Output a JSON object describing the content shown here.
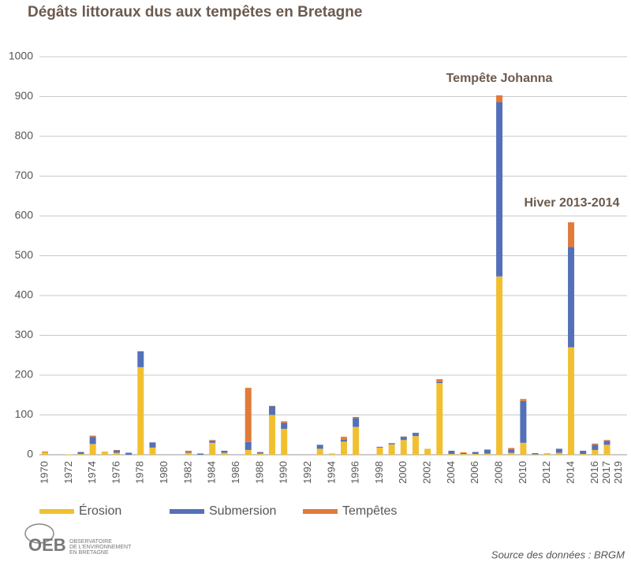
{
  "chart_data": {
    "type": "stacked-bar",
    "title": "Dégâts littoraux dus aux tempêtes en Bretagne",
    "categories": [
      "1970",
      null,
      "1972",
      null,
      "1974",
      null,
      "1976",
      null,
      "1978",
      null,
      "1980",
      null,
      "1982",
      null,
      "1984",
      null,
      "1986",
      null,
      "1988",
      null,
      "1990",
      null,
      "1992",
      null,
      "1994",
      null,
      "1996",
      null,
      "1998",
      null,
      "2000",
      null,
      "2002",
      null,
      "2004",
      null,
      "2006",
      null,
      "2008",
      null,
      "2010",
      null,
      "2012",
      null,
      "2014",
      null,
      "2016",
      "2017",
      "2019"
    ],
    "series": [
      {
        "name": "Érosion",
        "color": "#f0c030",
        "values": [
          6,
          0,
          1,
          2,
          27,
          8,
          5,
          0,
          220,
          18,
          0,
          0,
          5,
          0,
          30,
          5,
          0,
          12,
          3,
          100,
          65,
          0,
          0,
          15,
          3,
          33,
          70,
          0,
          18,
          26,
          37,
          47,
          15,
          180,
          2,
          2,
          2,
          3,
          448,
          5,
          30,
          1,
          4,
          5,
          270,
          2,
          12,
          25,
          0
        ]
      },
      {
        "name": "Submersion",
        "color": "#5470b8",
        "values": [
          0,
          0,
          0,
          5,
          18,
          0,
          6,
          5,
          40,
          13,
          0,
          0,
          2,
          3,
          5,
          5,
          0,
          20,
          3,
          22,
          15,
          0,
          0,
          10,
          0,
          5,
          22,
          0,
          2,
          3,
          8,
          8,
          0,
          3,
          8,
          2,
          5,
          10,
          438,
          8,
          105,
          3,
          0,
          10,
          252,
          8,
          13,
          10,
          0
        ]
      },
      {
        "name": "Tempêtes",
        "color": "#e07b39",
        "values": [
          2,
          0,
          0,
          0,
          3,
          0,
          1,
          0,
          0,
          0,
          0,
          0,
          3,
          0,
          2,
          0,
          0,
          136,
          1,
          1,
          4,
          0,
          0,
          0,
          0,
          7,
          3,
          0,
          0,
          0,
          1,
          0,
          0,
          7,
          0,
          2,
          0,
          0,
          17,
          4,
          5,
          0,
          0,
          0,
          62,
          0,
          3,
          2,
          0
        ]
      }
    ],
    "ylim": [
      0,
      1000
    ],
    "yticks": [
      0,
      100,
      200,
      300,
      400,
      500,
      600,
      700,
      800,
      900,
      1000
    ],
    "grid": true,
    "annotations": [
      "Tempête Johanna",
      "Hiver 2013-2014"
    ],
    "source": "Source des données : BRGM",
    "logo": [
      "OEB",
      "OBSERVATOIRE",
      "DE L'ENVIRONNEMENT",
      "EN BRETAGNE"
    ]
  }
}
